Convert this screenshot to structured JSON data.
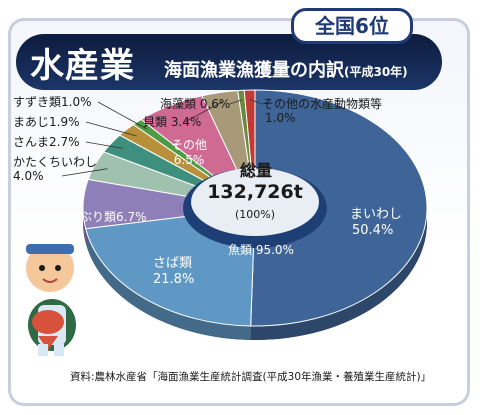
{
  "header": {
    "title_main": "水産業",
    "title_sub": "海面漁業漁獲量の内訳",
    "title_year": "(平成30年)",
    "rank_badge": "全国6位"
  },
  "center": {
    "label": "総量",
    "value": "132,726t",
    "percent": "(100%)"
  },
  "source": "資料:農林水産省「海面漁業生産統計調査(平成30年漁業・養殖業生産統計)」",
  "chart_data": {
    "type": "pie",
    "unit": "%",
    "total": "132,726t",
    "slices": [
      {
        "label": "まいわし",
        "value": 50.4,
        "value_text": "50.4%",
        "color": "#3f6598"
      },
      {
        "label": "さば類",
        "value": 21.8,
        "value_text": "21.8%",
        "color": "#5f98c4"
      },
      {
        "label": "ぶり類",
        "value": 6.7,
        "value_text": "6.7%",
        "color": "#8f7fb8"
      },
      {
        "label": "かたくちいわし",
        "value": 4.0,
        "value_text": "4.0%",
        "color": "#9fc1ad"
      },
      {
        "label": "さんま",
        "value": 2.7,
        "value_text": "2.7%",
        "color": "#3f8f7f"
      },
      {
        "label": "まあじ",
        "value": 1.9,
        "value_text": "1.9%",
        "color": "#b88f3a"
      },
      {
        "label": "すずき類",
        "value": 1.0,
        "value_text": "1.0%",
        "color": "#4f9a45"
      },
      {
        "label": "その他",
        "value": 6.5,
        "value_text": "6.5%",
        "color": "#cf6a93"
      },
      {
        "label": "貝類",
        "value": 3.4,
        "value_text": "3.4%",
        "color": "#a89a78"
      },
      {
        "label": "海藻類",
        "value": 0.6,
        "value_text": "0.6%",
        "color": "#6a8a3f"
      },
      {
        "label": "その他の水産動物類等",
        "value": 1.0,
        "value_text": "1.0%",
        "color": "#c23a34"
      }
    ],
    "group_label": "魚類 95.0%"
  }
}
